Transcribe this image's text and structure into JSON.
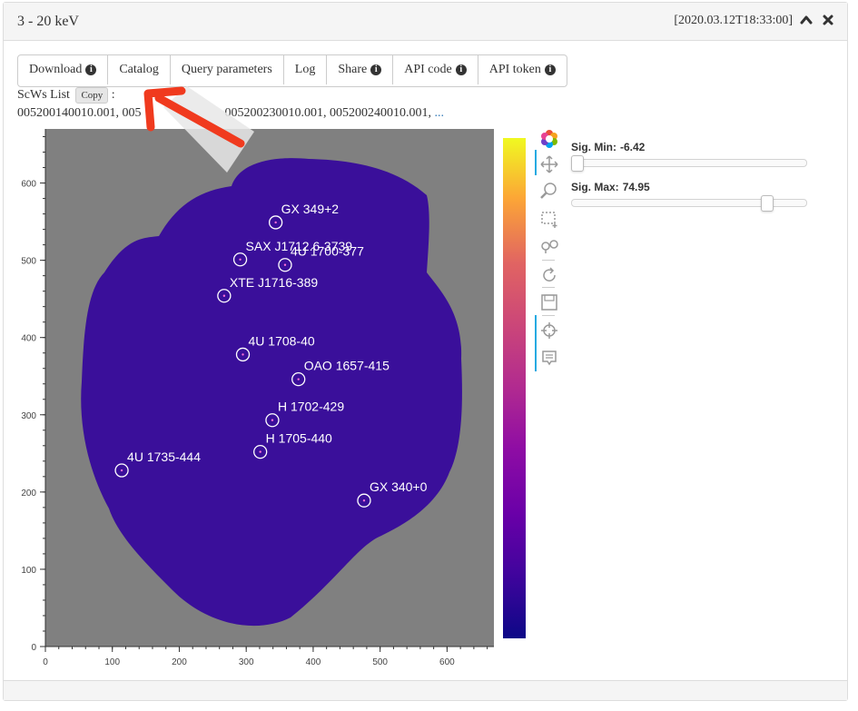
{
  "panel": {
    "title": "3 - 20 keV",
    "timestamp": "[2020.03.12T18:33:00]",
    "collapse_icon": "chevron-up-icon",
    "close_icon": "close-icon"
  },
  "buttons": [
    {
      "label": "Download",
      "icon": "info-icon"
    },
    {
      "label": "Catalog"
    },
    {
      "label": "Query parameters"
    },
    {
      "label": "Log"
    },
    {
      "label": "Share",
      "icon": "info-icon"
    },
    {
      "label": "API code",
      "icon": "info-icon"
    },
    {
      "label": "API token",
      "icon": "info-icon"
    }
  ],
  "scws": {
    "label": "ScWs List",
    "copy_label": "Copy",
    "colon": ":",
    "first": "005200140010.001, 005",
    "second": "005200230010.001, 005200240010.001,",
    "ellipsis": "..."
  },
  "sliders": {
    "min_label": "Sig. Min:",
    "min_value": "-6.42",
    "max_label": "Sig. Max:",
    "max_value": "74.95",
    "min_fraction": 0.0,
    "max_fraction": 0.85
  },
  "colors": {
    "sky": "#3a0f9a",
    "background": "#808080",
    "circle": "#ffffff",
    "arrow": "#f03a1e"
  },
  "chart_data": {
    "type": "heatmap",
    "xlim": [
      0,
      670
    ],
    "ylim": [
      0,
      670
    ],
    "xticks": [
      0,
      100,
      200,
      300,
      400,
      500,
      600
    ],
    "yticks": [
      0,
      100,
      200,
      300,
      400,
      500,
      600
    ],
    "colorbar": {
      "colormap": "plasma",
      "min": -6.42,
      "max": 74.95
    },
    "sources": [
      {
        "name": "GX 349+2",
        "x": 344,
        "y": 549
      },
      {
        "name": "SAX J1712.6-3739",
        "x": 291,
        "y": 501
      },
      {
        "name": "4U 1700-377",
        "x": 358,
        "y": 494
      },
      {
        "name": "XTE J1716-389",
        "x": 267,
        "y": 454
      },
      {
        "name": "4U 1708-40",
        "x": 295,
        "y": 378
      },
      {
        "name": "OAO 1657-415",
        "x": 378,
        "y": 346
      },
      {
        "name": "H 1702-429",
        "x": 339,
        "y": 293
      },
      {
        "name": "H 1705-440",
        "x": 321,
        "y": 252
      },
      {
        "name": "4U 1735-444",
        "x": 114,
        "y": 228
      },
      {
        "name": "GX 340+0",
        "x": 476,
        "y": 189
      }
    ]
  }
}
